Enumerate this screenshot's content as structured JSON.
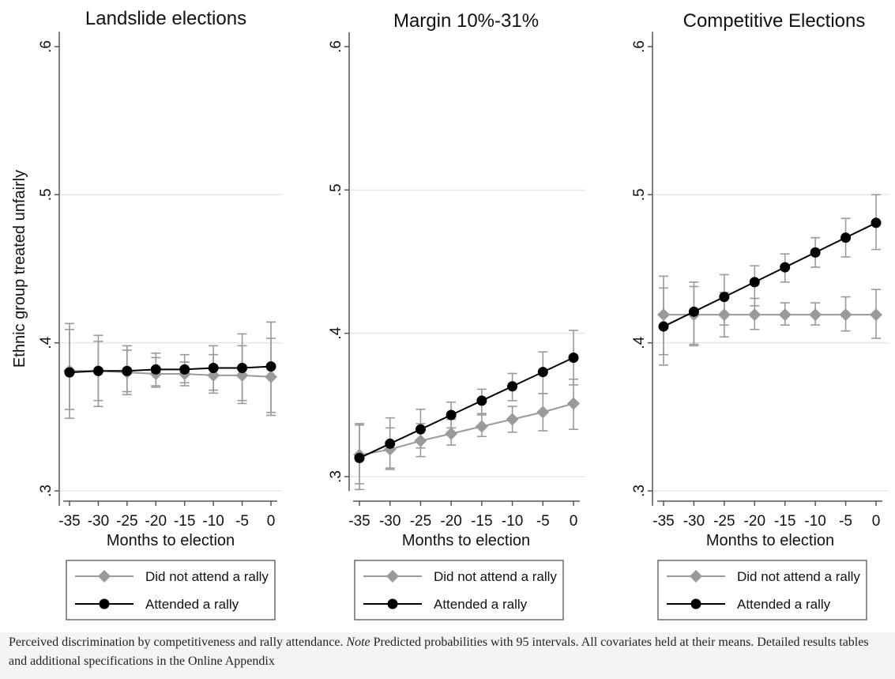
{
  "chart_data": {
    "type": "line",
    "ylabel": "Ethnic group treated unfairly",
    "xlabel": "Months to election",
    "x": [
      -35,
      -30,
      -25,
      -20,
      -15,
      -10,
      -5,
      0
    ],
    "x_tick_labels": [
      "-35",
      "-30",
      "-25",
      "-20",
      "-15",
      "-10",
      "-5",
      "0"
    ],
    "yticks": [
      0.3,
      0.4,
      0.5,
      0.6
    ],
    "ytick_labels": [
      ".3",
      ".4",
      ".5",
      ".6"
    ],
    "legend": [
      "Did not attend a rally",
      "Attended a rally"
    ],
    "colors": {
      "did_not_attend": "#9a9a9a",
      "attended": "#000000",
      "grid": "#e6e6e6",
      "axis": "#555555"
    },
    "panels": [
      {
        "title": "Landslide elections",
        "ylim": [
          0.29,
          0.61
        ],
        "series": [
          {
            "name": "Did not attend a rally",
            "values": [
              0.381,
              0.381,
              0.38,
              0.379,
              0.379,
              0.378,
              0.378,
              0.377
            ],
            "ci_low": [
              0.349,
              0.357,
              0.365,
              0.37,
              0.371,
              0.366,
              0.359,
              0.351
            ],
            "ci_high": [
              0.413,
              0.405,
              0.395,
              0.39,
              0.387,
              0.392,
              0.398,
              0.403
            ]
          },
          {
            "name": "Attended a rally",
            "values": [
              0.38,
              0.381,
              0.381,
              0.382,
              0.382,
              0.383,
              0.383,
              0.384
            ],
            "ci_low": [
              0.355,
              0.361,
              0.367,
              0.371,
              0.373,
              0.368,
              0.361,
              0.353
            ],
            "ci_high": [
              0.409,
              0.401,
              0.398,
              0.393,
              0.392,
              0.398,
              0.406,
              0.414
            ]
          }
        ]
      },
      {
        "title": "Margin 10%-31%",
        "ylim": [
          0.29,
          0.61
        ],
        "series": [
          {
            "name": "Did not attend a rally",
            "values": [
              0.315,
              0.319,
              0.325,
              0.33,
              0.335,
              0.34,
              0.345,
              0.351
            ],
            "ci_low": [
              0.295,
              0.305,
              0.314,
              0.322,
              0.328,
              0.331,
              0.332,
              0.333
            ],
            "ci_high": [
              0.336,
              0.334,
              0.337,
              0.34,
              0.343,
              0.349,
              0.358,
              0.368
            ]
          },
          {
            "name": "Attended a rally",
            "values": [
              0.313,
              0.323,
              0.333,
              0.343,
              0.353,
              0.363,
              0.373,
              0.383
            ],
            "ci_low": [
              0.291,
              0.306,
              0.32,
              0.334,
              0.344,
              0.353,
              0.358,
              0.364
            ],
            "ci_high": [
              0.337,
              0.341,
              0.347,
              0.352,
              0.361,
              0.372,
              0.387,
              0.402
            ]
          }
        ]
      },
      {
        "title": "Competitive Elections",
        "ylim": [
          0.29,
          0.61
        ],
        "series": [
          {
            "name": "Did not attend a rally",
            "values": [
              0.419,
              0.419,
              0.419,
              0.419,
              0.419,
              0.419,
              0.419,
              0.419
            ],
            "ci_low": [
              0.392,
              0.399,
              0.404,
              0.409,
              0.412,
              0.412,
              0.408,
              0.403
            ],
            "ci_high": [
              0.437,
              0.438,
              0.434,
              0.43,
              0.427,
              0.427,
              0.431,
              0.436
            ]
          },
          {
            "name": "Attended a rally",
            "values": [
              0.411,
              0.421,
              0.431,
              0.441,
              0.451,
              0.461,
              0.471,
              0.481
            ],
            "ci_low": [
              0.385,
              0.398,
              0.412,
              0.425,
              0.441,
              0.451,
              0.458,
              0.463
            ],
            "ci_high": [
              0.445,
              0.441,
              0.446,
              0.452,
              0.46,
              0.471,
              0.484,
              0.5
            ]
          }
        ]
      }
    ]
  },
  "caption": {
    "lead": "Perceived discrimination by competitiveness and rally attendance. ",
    "note_label": "Note",
    "body": " Predicted probabilities with 95 intervals. All covariates held at their means. Detailed results tables and additional specifications in the Online Appendix"
  }
}
